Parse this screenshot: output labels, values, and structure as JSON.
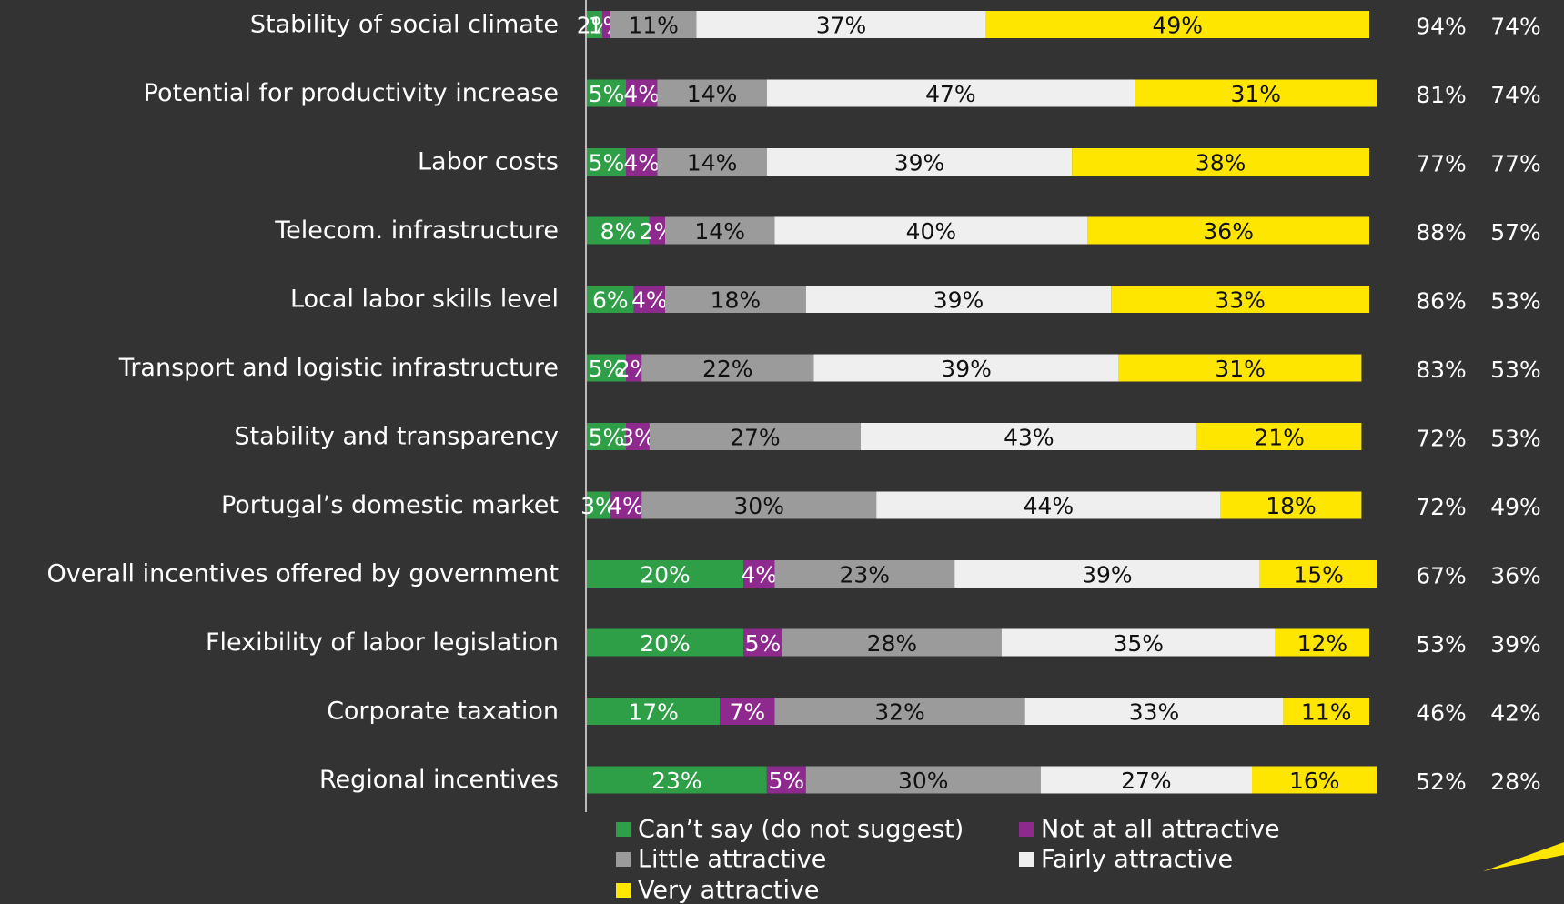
{
  "chart_data": {
    "type": "stacked-bar-horizontal",
    "categories": [
      "Stability of social climate",
      "Potential for productivity increase",
      "Labor costs",
      "Telecom. infrastructure",
      "Local labor skills level",
      "Transport and logistic infrastructure",
      "Stability and transparency",
      "Portugal’s domestic market",
      "Overall incentives offered by government",
      "Flexibility of labor legislation",
      "Corporate taxation",
      "Regional incentives"
    ],
    "series": [
      {
        "name": "Can’t say (do not suggest)",
        "color": "#2e9e47",
        "label_color": "#ffffff",
        "values": [
          2,
          5,
          5,
          8,
          6,
          5,
          5,
          3,
          20,
          20,
          17,
          23
        ],
        "value_labels": [
          "2%",
          "5%",
          "5%",
          "8%",
          "6%",
          "5%",
          "5%",
          "3%",
          "20%",
          "20%",
          "17%",
          "23%"
        ]
      },
      {
        "name": "Not at all attractive",
        "color": "#8e2a8e",
        "label_color": "#ffffff",
        "values": [
          1,
          4,
          4,
          2,
          4,
          2,
          3,
          4,
          4,
          5,
          7,
          5
        ],
        "value_labels": [
          "1%",
          "4%",
          "4%",
          "2%",
          "4%",
          "2%",
          "3%",
          "4%",
          "4%",
          "5%",
          "7%",
          "5%"
        ]
      },
      {
        "name": "Little attractive",
        "color": "#9b9b9b",
        "label_color": "#111111",
        "values": [
          11,
          14,
          14,
          14,
          18,
          22,
          27,
          30,
          23,
          28,
          32,
          30
        ],
        "value_labels": [
          "11%",
          "14%",
          "14%",
          "14%",
          "18%",
          "22%",
          "27%",
          "30%",
          "23%",
          "28%",
          "32%",
          "30%"
        ]
      },
      {
        "name": "Fairly attractive",
        "color": "#efefef",
        "label_color": "#111111",
        "values": [
          37,
          47,
          39,
          40,
          39,
          39,
          43,
          44,
          39,
          35,
          33,
          27
        ],
        "value_labels": [
          "37%",
          "47%",
          "39%",
          "40%",
          "39%",
          "39%",
          "43%",
          "44%",
          "39%",
          "35%",
          "33%",
          "27%"
        ]
      },
      {
        "name": "Very attractive",
        "color": "#ffe600",
        "label_color": "#111111",
        "values": [
          49,
          31,
          38,
          36,
          33,
          31,
          21,
          18,
          15,
          12,
          11,
          16
        ],
        "value_labels": [
          "49%",
          "31%",
          "38%",
          "36%",
          "33%",
          "31%",
          "21%",
          "18%",
          "15%",
          "12%",
          "11%",
          "16%"
        ]
      }
    ],
    "right_columns": [
      [
        "94%",
        "81%",
        "77%",
        "88%",
        "86%",
        "83%",
        "72%",
        "72%",
        "67%",
        "53%",
        "46%",
        "52%"
      ],
      [
        "74%",
        "74%",
        "77%",
        "57%",
        "53%",
        "53%",
        "53%",
        "49%",
        "36%",
        "39%",
        "42%",
        "28%"
      ]
    ]
  }
}
